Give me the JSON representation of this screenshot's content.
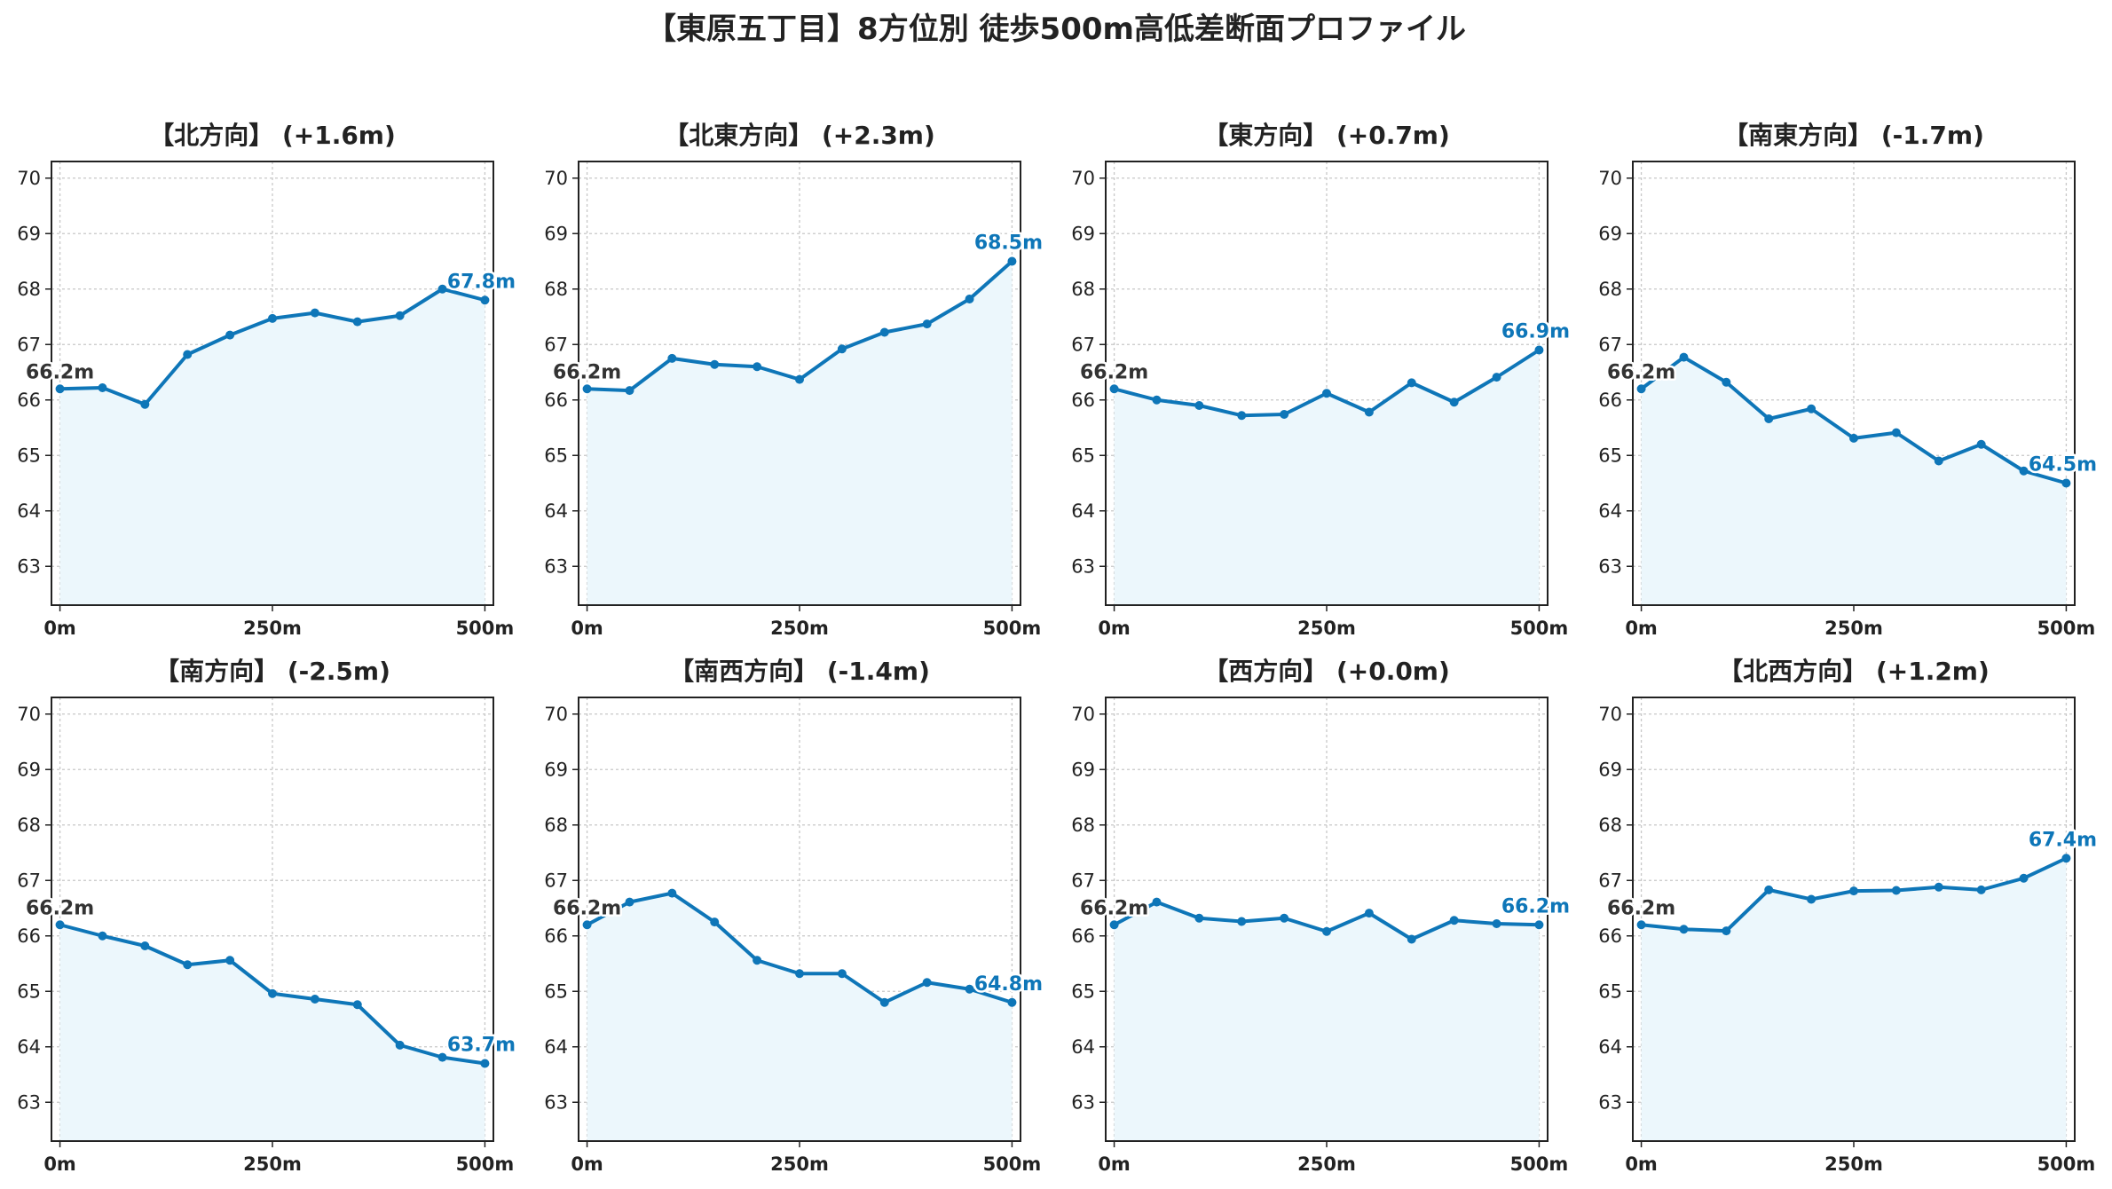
{
  "figure": {
    "title": "【東原五丁目】8方位別 徒歩500m高低差断面プロファイル",
    "colors": {
      "line": "#0e76b8",
      "fill": "#ecf7fc",
      "start_label": "#333333",
      "end_label": "#0e76b8"
    }
  },
  "chart_data": [
    {
      "type": "area",
      "title": "【北方向】 (+1.6m)",
      "x": [
        0,
        50,
        100,
        150,
        200,
        250,
        300,
        350,
        400,
        450,
        500
      ],
      "series": [
        {
          "values": [
            66.2,
            66.22,
            65.92,
            66.82,
            67.17,
            67.47,
            67.57,
            67.41,
            67.52,
            68.0,
            67.8
          ]
        }
      ],
      "xticks": [
        0,
        250,
        500
      ],
      "xtick_labels": [
        "0m",
        "250m",
        "500m"
      ],
      "yticks": [
        63,
        64,
        65,
        66,
        67,
        68,
        69,
        70
      ],
      "ylim": [
        62.3,
        70.3
      ],
      "xlim": [
        -10,
        510
      ],
      "grid": true,
      "start_label": "66.2m",
      "end_label": "67.8m"
    },
    {
      "type": "area",
      "title": "【北東方向】 (+2.3m)",
      "x": [
        0,
        50,
        100,
        150,
        200,
        250,
        300,
        350,
        400,
        450,
        500
      ],
      "series": [
        {
          "values": [
            66.2,
            66.17,
            66.75,
            66.64,
            66.6,
            66.37,
            66.92,
            67.22,
            67.37,
            67.82,
            68.5
          ]
        }
      ],
      "xticks": [
        0,
        250,
        500
      ],
      "xtick_labels": [
        "0m",
        "250m",
        "500m"
      ],
      "yticks": [
        63,
        64,
        65,
        66,
        67,
        68,
        69,
        70
      ],
      "ylim": [
        62.3,
        70.3
      ],
      "xlim": [
        -10,
        510
      ],
      "grid": true,
      "start_label": "66.2m",
      "end_label": "68.5m"
    },
    {
      "type": "area",
      "title": "【東方向】 (+0.7m)",
      "x": [
        0,
        50,
        100,
        150,
        200,
        250,
        300,
        350,
        400,
        450,
        500
      ],
      "series": [
        {
          "values": [
            66.2,
            66.0,
            65.9,
            65.72,
            65.74,
            66.12,
            65.78,
            66.31,
            65.96,
            66.41,
            66.9
          ]
        }
      ],
      "xticks": [
        0,
        250,
        500
      ],
      "xtick_labels": [
        "0m",
        "250m",
        "500m"
      ],
      "yticks": [
        63,
        64,
        65,
        66,
        67,
        68,
        69,
        70
      ],
      "ylim": [
        62.3,
        70.3
      ],
      "xlim": [
        -10,
        510
      ],
      "grid": true,
      "start_label": "66.2m",
      "end_label": "66.9m"
    },
    {
      "type": "area",
      "title": "【南東方向】 (-1.7m)",
      "x": [
        0,
        50,
        100,
        150,
        200,
        250,
        300,
        350,
        400,
        450,
        500
      ],
      "series": [
        {
          "values": [
            66.2,
            66.77,
            66.32,
            65.66,
            65.84,
            65.31,
            65.41,
            64.9,
            65.2,
            64.72,
            64.5
          ]
        }
      ],
      "xticks": [
        0,
        250,
        500
      ],
      "xtick_labels": [
        "0m",
        "250m",
        "500m"
      ],
      "yticks": [
        63,
        64,
        65,
        66,
        67,
        68,
        69,
        70
      ],
      "ylim": [
        62.3,
        70.3
      ],
      "xlim": [
        -10,
        510
      ],
      "grid": true,
      "start_label": "66.2m",
      "end_label": "64.5m"
    },
    {
      "type": "area",
      "title": "【南方向】 (-2.5m)",
      "x": [
        0,
        50,
        100,
        150,
        200,
        250,
        300,
        350,
        400,
        450,
        500
      ],
      "series": [
        {
          "values": [
            66.2,
            66.0,
            65.82,
            65.48,
            65.56,
            64.96,
            64.86,
            64.76,
            64.03,
            63.81,
            63.7
          ]
        }
      ],
      "xticks": [
        0,
        250,
        500
      ],
      "xtick_labels": [
        "0m",
        "250m",
        "500m"
      ],
      "yticks": [
        63,
        64,
        65,
        66,
        67,
        68,
        69,
        70
      ],
      "ylim": [
        62.3,
        70.3
      ],
      "xlim": [
        -10,
        510
      ],
      "grid": true,
      "start_label": "66.2m",
      "end_label": "63.7m"
    },
    {
      "type": "area",
      "title": "【南西方向】 (-1.4m)",
      "x": [
        0,
        50,
        100,
        150,
        200,
        250,
        300,
        350,
        400,
        450,
        500
      ],
      "series": [
        {
          "values": [
            66.2,
            66.61,
            66.77,
            66.25,
            65.56,
            65.32,
            65.32,
            64.8,
            65.16,
            65.04,
            64.8
          ]
        }
      ],
      "xticks": [
        0,
        250,
        500
      ],
      "xtick_labels": [
        "0m",
        "250m",
        "500m"
      ],
      "yticks": [
        63,
        64,
        65,
        66,
        67,
        68,
        69,
        70
      ],
      "ylim": [
        62.3,
        70.3
      ],
      "xlim": [
        -10,
        510
      ],
      "grid": true,
      "start_label": "66.2m",
      "end_label": "64.8m"
    },
    {
      "type": "area",
      "title": "【西方向】 (+0.0m)",
      "x": [
        0,
        50,
        100,
        150,
        200,
        250,
        300,
        350,
        400,
        450,
        500
      ],
      "series": [
        {
          "values": [
            66.2,
            66.61,
            66.32,
            66.26,
            66.32,
            66.08,
            66.41,
            65.94,
            66.28,
            66.22,
            66.2
          ]
        }
      ],
      "xticks": [
        0,
        250,
        500
      ],
      "xtick_labels": [
        "0m",
        "250m",
        "500m"
      ],
      "yticks": [
        63,
        64,
        65,
        66,
        67,
        68,
        69,
        70
      ],
      "ylim": [
        62.3,
        70.3
      ],
      "xlim": [
        -10,
        510
      ],
      "grid": true,
      "start_label": "66.2m",
      "end_label": "66.2m"
    },
    {
      "type": "area",
      "title": "【北西方向】 (+1.2m)",
      "x": [
        0,
        50,
        100,
        150,
        200,
        250,
        300,
        350,
        400,
        450,
        500
      ],
      "series": [
        {
          "values": [
            66.2,
            66.12,
            66.09,
            66.83,
            66.66,
            66.81,
            66.82,
            66.88,
            66.83,
            67.04,
            67.4
          ]
        }
      ],
      "xticks": [
        0,
        250,
        500
      ],
      "xtick_labels": [
        "0m",
        "250m",
        "500m"
      ],
      "yticks": [
        63,
        64,
        65,
        66,
        67,
        68,
        69,
        70
      ],
      "ylim": [
        62.3,
        70.3
      ],
      "xlim": [
        -10,
        510
      ],
      "grid": true,
      "start_label": "66.2m",
      "end_label": "67.4m"
    }
  ]
}
